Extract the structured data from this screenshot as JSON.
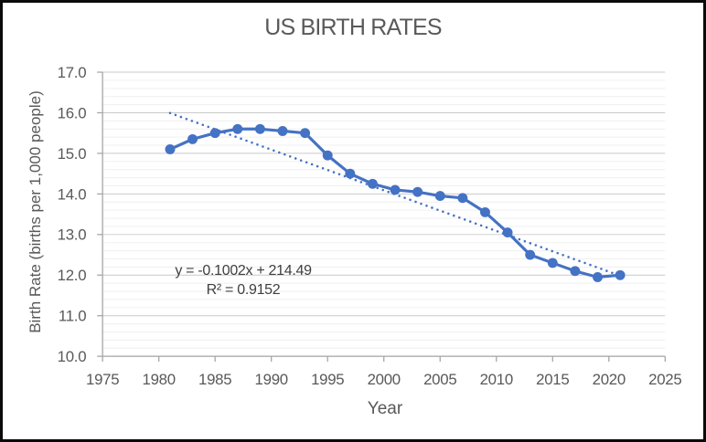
{
  "window": {
    "background": "#ffffff",
    "border_color": "#0a0a0a"
  },
  "chart_data": {
    "type": "line",
    "title": "US BIRTH RATES",
    "xlabel": "Year",
    "ylabel": "Birth Rate (births per 1,000 people)",
    "xlim": [
      1975,
      2025
    ],
    "ylim": [
      10.0,
      17.0
    ],
    "x_tick_labels": [
      "1975",
      "1980",
      "1985",
      "1990",
      "1995",
      "2000",
      "2005",
      "2010",
      "2015",
      "2020",
      "2025"
    ],
    "y_tick_labels": [
      "10.0",
      "11.0",
      "12.0",
      "13.0",
      "14.0",
      "15.0",
      "16.0",
      "17.0"
    ],
    "y_minor_step": 0.2,
    "grid": "horizontal major + minor, no vertical",
    "legend": "none",
    "series": [
      {
        "name": "US birth rate",
        "x": [
          1981,
          1983,
          1985,
          1987,
          1989,
          1991,
          1993,
          1995,
          1997,
          1999,
          2001,
          2003,
          2005,
          2007,
          2009,
          2011,
          2013,
          2015,
          2017,
          2019,
          2021
        ],
        "values": [
          15.1,
          15.35,
          15.5,
          15.6,
          15.6,
          15.55,
          15.5,
          14.95,
          14.5,
          14.25,
          14.1,
          14.05,
          13.95,
          13.9,
          13.55,
          13.05,
          12.5,
          12.3,
          12.1,
          11.95,
          12.0
        ],
        "style": "solid line with circle markers"
      }
    ],
    "trendline": {
      "style": "dotted",
      "slope": -0.1002,
      "intercept": 214.49,
      "x_start": 1981,
      "x_end": 2021,
      "equation_label": "y = -0.1002x + 214.49",
      "r2_label": "R² = 0.9152"
    },
    "colors": {
      "series": "#4472C4",
      "trendline": "#4472C4",
      "grid_major": "#c9c9c9",
      "grid_minor": "#efefef",
      "axis": "#a6a6a6",
      "tick_text": "#595959",
      "title_text": "#595959",
      "annotation_text": "#3f3f3f"
    }
  }
}
